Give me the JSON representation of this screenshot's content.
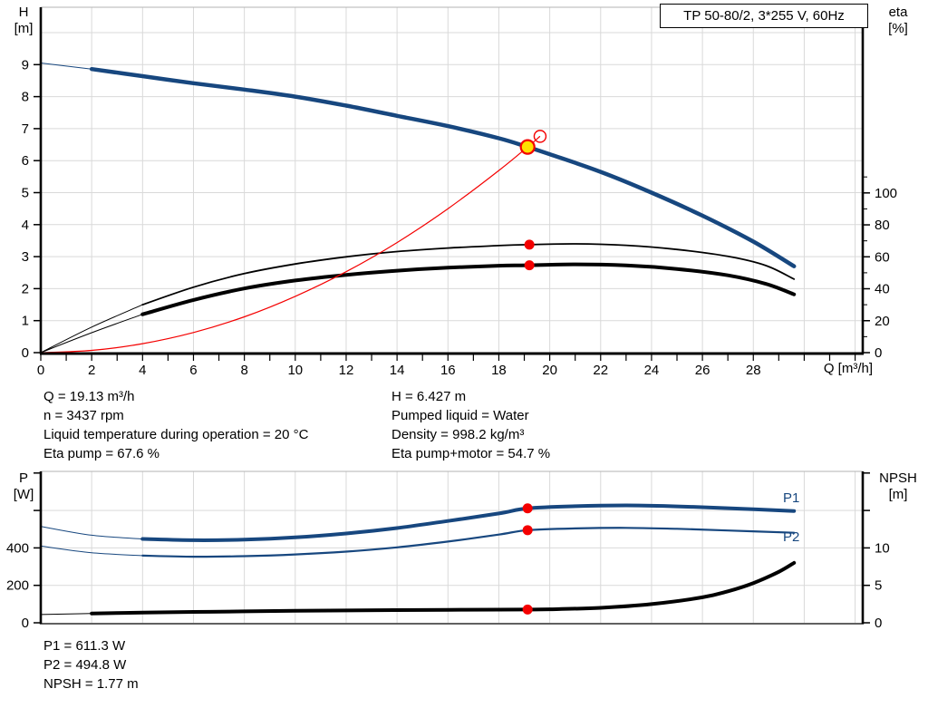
{
  "title_box": {
    "text": "TP 50-80/2, 3*255 V, 60Hz"
  },
  "axis_titles": {
    "h": "H",
    "h_unit": "[m]",
    "eta": "eta",
    "eta_unit": "[%]",
    "q": "Q [m³/h]",
    "p": "P",
    "p_unit": "[W]",
    "npsh": "NPSH",
    "npsh_unit": "[m]"
  },
  "series_labels": {
    "p1": "P1",
    "p2": "P2"
  },
  "info_top": {
    "left": [
      "Q = 19.13 m³/h",
      "n = 3437 rpm",
      "Liquid temperature during operation = 20 °C",
      "Eta pump = 67.6 %"
    ],
    "right": [
      "H = 6.427 m",
      "Pumped liquid = Water",
      "Density = 998.2 kg/m³",
      "Eta pump+motor = 54.7 %"
    ]
  },
  "info_bottom": [
    "P1 = 611.3 W",
    "P2 = 494.8 W",
    "NPSH = 1.77 m"
  ],
  "colors": {
    "curve_blue": "#17477f",
    "curve_red": "#f40000",
    "curve_black": "#000000",
    "grid": "#d9d9d9",
    "dot_red": "#f40000",
    "op_yellow": "#ffdf00"
  },
  "chart_data": [
    {
      "type": "line",
      "name": "head-efficiency-chart",
      "x_axis": {
        "label": "Q [m³/h]",
        "min": 0,
        "max": 32.3,
        "minor_step": 1,
        "major_ticks": [
          [
            0,
            "0"
          ],
          [
            2,
            "2"
          ],
          [
            4,
            "4"
          ],
          [
            6,
            "6"
          ],
          [
            8,
            "8"
          ],
          [
            10,
            "10"
          ],
          [
            12,
            "12"
          ],
          [
            14,
            "14"
          ],
          [
            16,
            "16"
          ],
          [
            18,
            "18"
          ],
          [
            20,
            "20"
          ],
          [
            22,
            "22"
          ],
          [
            24,
            "24"
          ],
          [
            26,
            "26"
          ],
          [
            28,
            "28"
          ]
        ]
      },
      "y_left": {
        "label": "H [m]",
        "min": 0,
        "max": 10.8,
        "ticks": [
          [
            0,
            "0"
          ],
          [
            1,
            "1"
          ],
          [
            2,
            "2"
          ],
          [
            3,
            "3"
          ],
          [
            4,
            "4"
          ],
          [
            5,
            "5"
          ],
          [
            6,
            "6"
          ],
          [
            7,
            "7"
          ],
          [
            8,
            "8"
          ],
          [
            9,
            "9"
          ]
        ],
        "grid": [
          1,
          2,
          3,
          4,
          5,
          6,
          7,
          8,
          9,
          10
        ]
      },
      "y_right": {
        "label": "eta [%]",
        "min": 0,
        "max": 216,
        "ticks": [
          [
            0,
            "0"
          ],
          [
            20,
            "20"
          ],
          [
            40,
            "40"
          ],
          [
            60,
            "60"
          ],
          [
            80,
            "80"
          ],
          [
            100,
            "100"
          ]
        ],
        "minor_step": 10,
        "minor_max": 110
      },
      "series": [
        {
          "name": "eta-pump-curve",
          "axis": "right",
          "color": "#000000",
          "width": 1.8,
          "thin_until": 4,
          "points": [
            [
              0,
              0
            ],
            [
              2,
              16
            ],
            [
              4,
              30
            ],
            [
              6,
              41
            ],
            [
              8,
              49.5
            ],
            [
              10,
              55.5
            ],
            [
              12,
              60
            ],
            [
              14,
              63.3
            ],
            [
              16,
              65.5
            ],
            [
              18,
              67
            ],
            [
              19.13,
              67.6
            ],
            [
              21,
              68.1
            ],
            [
              23,
              67.2
            ],
            [
              25,
              64.6
            ],
            [
              27,
              60.3
            ],
            [
              28.5,
              54.5
            ],
            [
              29.6,
              46
            ]
          ]
        },
        {
          "name": "eta-pump-motor-curve",
          "axis": "right",
          "color": "#000000",
          "width": 4,
          "thin_until": 4,
          "points": [
            [
              0,
              0
            ],
            [
              2,
              12.5
            ],
            [
              4,
              24
            ],
            [
              6,
              33
            ],
            [
              8,
              40.2
            ],
            [
              10,
              45.2
            ],
            [
              12,
              48.7
            ],
            [
              14,
              51.3
            ],
            [
              16,
              53.2
            ],
            [
              18,
              54.4
            ],
            [
              19.13,
              54.7
            ],
            [
              21,
              55.3
            ],
            [
              23,
              54.6
            ],
            [
              25,
              52.4
            ],
            [
              27,
              48.4
            ],
            [
              28.5,
              43
            ],
            [
              29.6,
              36.5
            ]
          ]
        },
        {
          "name": "system-curve",
          "axis": "left",
          "color": "#f40000",
          "width": 1.2,
          "points": [
            [
              0,
              0
            ],
            [
              2,
              0.07
            ],
            [
              4,
              0.28
            ],
            [
              6,
              0.63
            ],
            [
              8,
              1.12
            ],
            [
              10,
              1.76
            ],
            [
              12,
              2.53
            ],
            [
              14,
              3.44
            ],
            [
              16,
              4.5
            ],
            [
              18,
              5.69
            ],
            [
              19.13,
              6.427
            ],
            [
              19.62,
              6.76
            ]
          ]
        },
        {
          "name": "pump-head-curve",
          "axis": "left",
          "color": "#17477f",
          "width": 4.5,
          "thin_until": 2,
          "points": [
            [
              0,
              9.05
            ],
            [
              2,
              8.86
            ],
            [
              4,
              8.64
            ],
            [
              6,
              8.42
            ],
            [
              8,
              8.22
            ],
            [
              10,
              8.0
            ],
            [
              12,
              7.72
            ],
            [
              14,
              7.4
            ],
            [
              16,
              7.08
            ],
            [
              18,
              6.7
            ],
            [
              19.13,
              6.427
            ],
            [
              20,
              6.2
            ],
            [
              22,
              5.65
            ],
            [
              24,
              5.0
            ],
            [
              26,
              4.28
            ],
            [
              28,
              3.47
            ],
            [
              29.6,
              2.7
            ]
          ]
        }
      ],
      "markers": [
        {
          "type": "open-circle",
          "q": 19.62,
          "value": 6.76,
          "axis": "left"
        },
        {
          "type": "dot",
          "q": 19.2,
          "value": 67.6,
          "axis": "right"
        },
        {
          "type": "dot",
          "q": 19.2,
          "value": 54.7,
          "axis": "right"
        },
        {
          "type": "operating-point",
          "q": 19.13,
          "value": 6.427,
          "axis": "left"
        }
      ]
    },
    {
      "type": "line",
      "name": "power-npsh-chart",
      "x_axis": {
        "label": "",
        "min": 0,
        "max": 32.3,
        "minor_step": 0,
        "major_ticks": []
      },
      "y_left": {
        "label": "P [W]",
        "min": 0,
        "max": 808,
        "ticks": [
          [
            0,
            "0"
          ],
          [
            200,
            "200"
          ],
          [
            400,
            "400"
          ],
          [
            600,
            ""
          ],
          [
            800,
            ""
          ]
        ],
        "grid": [
          200,
          400,
          600
        ]
      },
      "y_right": {
        "label": "NPSH [m]",
        "min": 0,
        "max": 20.2,
        "ticks": [
          [
            0,
            "0"
          ],
          [
            5,
            "5"
          ],
          [
            10,
            "10"
          ],
          [
            15,
            ""
          ],
          [
            20,
            ""
          ]
        ]
      },
      "series": [
        {
          "name": "p1-power-curve",
          "axis": "left",
          "color": "#17477f",
          "width": 4,
          "thin_until": 4,
          "points": [
            [
              0,
              515
            ],
            [
              2,
              468
            ],
            [
              4,
              448
            ],
            [
              6,
              441
            ],
            [
              8,
              444
            ],
            [
              10,
              456
            ],
            [
              12,
              477
            ],
            [
              14,
              506
            ],
            [
              16,
              544
            ],
            [
              18,
              584
            ],
            [
              19.13,
              611.3
            ],
            [
              21,
              623
            ],
            [
              23,
              627
            ],
            [
              25,
              622
            ],
            [
              27,
              612
            ],
            [
              29.6,
              597
            ]
          ]
        },
        {
          "name": "p2-power-curve",
          "axis": "left",
          "color": "#17477f",
          "width": 2.2,
          "thin_until": 4,
          "points": [
            [
              0,
              410
            ],
            [
              2,
              374
            ],
            [
              4,
              359
            ],
            [
              6,
              353
            ],
            [
              8,
              356
            ],
            [
              10,
              365
            ],
            [
              12,
              380
            ],
            [
              14,
              403
            ],
            [
              16,
              434
            ],
            [
              18,
              471
            ],
            [
              19.13,
              494.8
            ],
            [
              21,
              504
            ],
            [
              23,
              507
            ],
            [
              25,
              502
            ],
            [
              27,
              493
            ],
            [
              29.6,
              481
            ]
          ]
        },
        {
          "name": "npsh-curve",
          "axis": "right",
          "color": "#000000",
          "width": 4,
          "thin_until": 1.9,
          "points": [
            [
              0,
              1.1
            ],
            [
              2,
              1.25
            ],
            [
              4,
              1.35
            ],
            [
              6,
              1.45
            ],
            [
              8,
              1.52
            ],
            [
              10,
              1.6
            ],
            [
              12,
              1.65
            ],
            [
              14,
              1.7
            ],
            [
              16,
              1.73
            ],
            [
              18,
              1.76
            ],
            [
              19.13,
              1.77
            ],
            [
              20,
              1.8
            ],
            [
              22,
              2.0
            ],
            [
              24,
              2.5
            ],
            [
              26,
              3.4
            ],
            [
              27,
              4.2
            ],
            [
              28,
              5.3
            ],
            [
              29,
              6.8
            ],
            [
              29.6,
              8.0
            ]
          ]
        }
      ],
      "markers": [
        {
          "type": "dot",
          "q": 19.13,
          "value": 611.3,
          "axis": "left"
        },
        {
          "type": "dot",
          "q": 19.13,
          "value": 494.8,
          "axis": "left"
        },
        {
          "type": "dot",
          "q": 19.13,
          "value": 1.77,
          "axis": "right"
        }
      ]
    }
  ]
}
